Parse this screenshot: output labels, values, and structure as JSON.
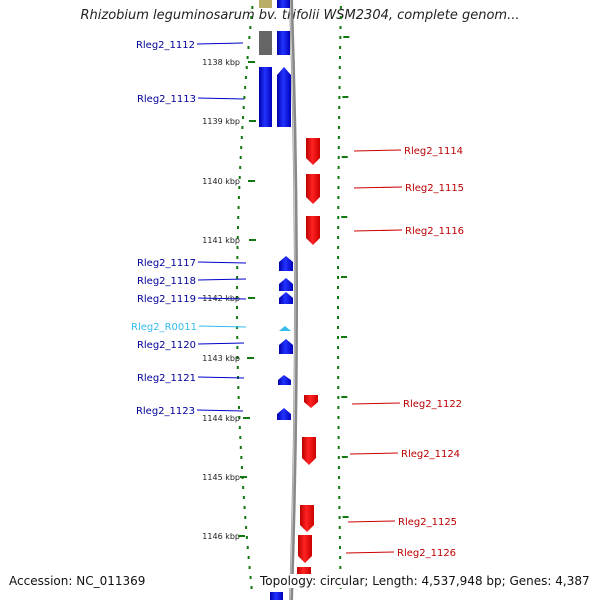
{
  "title": "Rhizobium leguminosarum bv. trifolii WSM2304, complete genom...",
  "footer": {
    "accession": "Accession: NC_011369",
    "topology": "Topology: circular; Length: 4,537,948 bp; Genes: 4,387"
  },
  "colors": {
    "forward_gene": "#0000ee",
    "reverse_gene": "#ee0000",
    "rna_gene": "#33bbee",
    "tick": "#117711",
    "backbone": "#888888"
  },
  "kbp_labels": [
    "1138 kbp",
    "1139 kbp",
    "1140 kbp",
    "1141 kbp",
    "1142 kbp",
    "1143 kbp",
    "1144 kbp",
    "1145 kbp",
    "1146 kbp"
  ],
  "genes_left": [
    {
      "label": "Rleg2_1112",
      "type": "forward"
    },
    {
      "label": "Rleg2_1113",
      "type": "forward"
    },
    {
      "label": "Rleg2_1117",
      "type": "forward"
    },
    {
      "label": "Rleg2_1118",
      "type": "forward"
    },
    {
      "label": "Rleg2_1119",
      "type": "forward"
    },
    {
      "label": "Rleg2_R0011",
      "type": "rna"
    },
    {
      "label": "Rleg2_1120",
      "type": "forward"
    },
    {
      "label": "Rleg2_1121",
      "type": "forward"
    },
    {
      "label": "Rleg2_1123",
      "type": "forward"
    }
  ],
  "genes_right": [
    {
      "label": "Rleg2_1114",
      "type": "reverse"
    },
    {
      "label": "Rleg2_1115",
      "type": "reverse"
    },
    {
      "label": "Rleg2_1116",
      "type": "reverse"
    },
    {
      "label": "Rleg2_1122",
      "type": "reverse"
    },
    {
      "label": "Rleg2_1124",
      "type": "reverse"
    },
    {
      "label": "Rleg2_1125",
      "type": "reverse"
    },
    {
      "label": "Rleg2_1126",
      "type": "reverse"
    }
  ]
}
